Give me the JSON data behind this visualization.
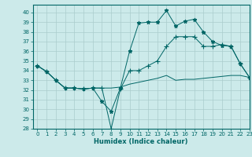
{
  "xlabel": "Humidex (Indice chaleur)",
  "bg_color": "#cceaea",
  "grid_color": "#aacccc",
  "line_color": "#006666",
  "xlim": [
    -0.5,
    23
  ],
  "ylim": [
    28,
    40.8
  ],
  "yticks": [
    28,
    29,
    30,
    31,
    32,
    33,
    34,
    35,
    36,
    37,
    38,
    39,
    40
  ],
  "xticks": [
    0,
    1,
    2,
    3,
    4,
    5,
    6,
    7,
    8,
    9,
    10,
    11,
    12,
    13,
    14,
    15,
    16,
    17,
    18,
    19,
    20,
    21,
    22,
    23
  ],
  "series": [
    {
      "x": [
        0,
        1,
        2,
        3,
        4,
        5,
        6,
        7,
        8,
        9,
        10,
        11,
        12,
        13,
        14,
        15,
        16,
        17,
        18,
        19,
        20,
        21,
        22,
        23
      ],
      "y": [
        34.5,
        33.9,
        33.0,
        32.2,
        32.2,
        32.1,
        32.2,
        30.8,
        29.8,
        32.2,
        36.0,
        38.9,
        39.0,
        39.0,
        40.2,
        38.6,
        39.1,
        39.3,
        38.0,
        37.0,
        36.6,
        36.5,
        34.7,
        33.3
      ],
      "marker": "*",
      "markersize": 3.5
    },
    {
      "x": [
        0,
        1,
        2,
        3,
        4,
        5,
        6,
        7,
        8,
        9,
        10,
        11,
        12,
        13,
        14,
        15,
        16,
        17,
        18,
        19,
        20,
        21,
        22,
        23
      ],
      "y": [
        34.5,
        33.9,
        33.0,
        32.2,
        32.2,
        32.1,
        32.2,
        32.2,
        28.0,
        32.1,
        34.0,
        34.0,
        34.5,
        35.0,
        36.5,
        37.5,
        37.5,
        37.5,
        36.5,
        36.5,
        36.7,
        36.5,
        34.7,
        33.3
      ],
      "marker": "+",
      "markersize": 4
    },
    {
      "x": [
        0,
        1,
        2,
        3,
        4,
        5,
        6,
        7,
        8,
        9,
        10,
        11,
        12,
        13,
        14,
        15,
        16,
        17,
        18,
        19,
        20,
        21,
        22,
        23
      ],
      "y": [
        34.5,
        33.9,
        33.0,
        32.2,
        32.2,
        32.1,
        32.2,
        32.2,
        32.2,
        32.3,
        32.6,
        32.8,
        33.0,
        33.2,
        33.5,
        33.0,
        33.1,
        33.1,
        33.2,
        33.3,
        33.4,
        33.5,
        33.5,
        33.3
      ],
      "marker": null,
      "markersize": 0
    }
  ]
}
